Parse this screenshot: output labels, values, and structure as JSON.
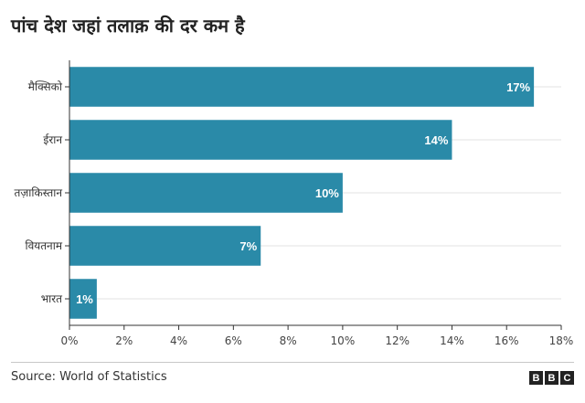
{
  "chart_data": {
    "type": "bar",
    "orientation": "horizontal",
    "title": "पांच देश जहां तलाक़ की दर कम है",
    "categories": [
      "मैक्सिको",
      "ईरान",
      "तज़ाकिस्तान",
      "वियतनाम",
      "भारत"
    ],
    "values": [
      17,
      14,
      10,
      7,
      1
    ],
    "data_labels": [
      "17%",
      "14%",
      "10%",
      "7%",
      "1%"
    ],
    "xlim": [
      0,
      18
    ],
    "xticks": [
      0,
      2,
      4,
      6,
      8,
      10,
      12,
      14,
      16,
      18
    ],
    "xtick_labels": [
      "0%",
      "2%",
      "4%",
      "6%",
      "8%",
      "10%",
      "12%",
      "14%",
      "16%",
      "18%"
    ],
    "grid": true,
    "bar_color": "#2a8aa8"
  },
  "footer": {
    "source": "Source: World of Statistics",
    "logo_letters": [
      "B",
      "B",
      "C"
    ]
  }
}
